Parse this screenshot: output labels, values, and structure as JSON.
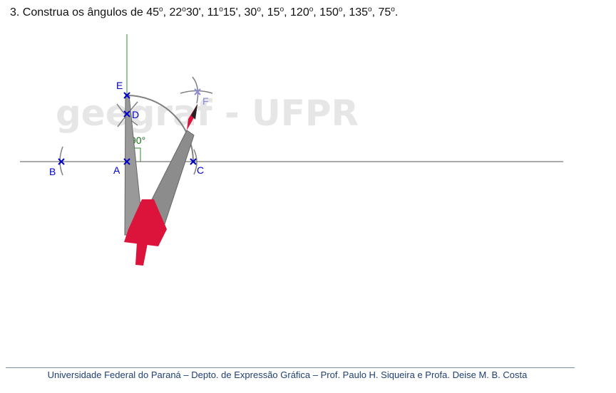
{
  "title": {
    "prefix": "3. Construa os ângulos de ",
    "angles": [
      {
        "main": "45",
        "deg": "o",
        "rest": ""
      },
      {
        "main": "22",
        "deg": "o",
        "rest": "30'"
      },
      {
        "main": "11",
        "deg": "o",
        "rest": "15'"
      },
      {
        "main": "30",
        "deg": "o",
        "rest": ""
      },
      {
        "main": "15",
        "deg": "o",
        "rest": ""
      },
      {
        "main": "120",
        "deg": "o",
        "rest": ""
      },
      {
        "main": "150",
        "deg": "o",
        "rest": ""
      },
      {
        "main": "135",
        "deg": "o",
        "rest": ""
      },
      {
        "main": "75",
        "deg": "o",
        "rest": ""
      }
    ],
    "end": "."
  },
  "watermark": "geegraf - UFPR",
  "points": {
    "A": "A",
    "B": "B",
    "C": "C",
    "D": "D",
    "E": "E",
    "F": "F"
  },
  "angle_label": "90°",
  "colors": {
    "point": "#0000cc",
    "point_f": "#8888dd",
    "perpendicular": "#2e8b2e",
    "compass_body": "#8c8c8c",
    "compass_handle": "#dc143c",
    "arc": "#808080",
    "footer_text": "#1f3f73"
  },
  "footer": "Universidade Federal do Paraná – Depto. de Expressão Gráfica – Prof. Paulo H. Siqueira e Profa. Deise M. B. Costa"
}
